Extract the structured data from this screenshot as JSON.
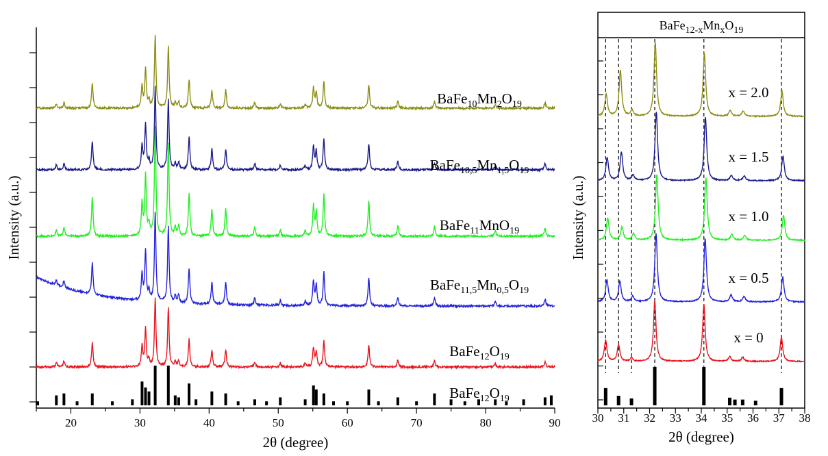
{
  "chart_data": [
    {
      "type": "line",
      "panel": "left",
      "xlabel": "2θ (degree)",
      "ylabel": "Intensity (a.u.)",
      "xlim": [
        15,
        90
      ],
      "xticks": [
        20,
        30,
        40,
        50,
        60,
        70,
        80,
        90
      ],
      "peaks_2theta": [
        17.9,
        19.0,
        23.1,
        30.3,
        30.8,
        31.3,
        32.2,
        34.1,
        35.1,
        35.6,
        37.1,
        40.4,
        42.4,
        46.6,
        50.3,
        53.9,
        55.1,
        55.5,
        56.6,
        63.1,
        67.3,
        72.6,
        81.4,
        88.6
      ],
      "peak_intensities": [
        0.06,
        0.08,
        0.35,
        0.3,
        0.55,
        0.1,
        1.0,
        0.85,
        0.08,
        0.09,
        0.4,
        0.25,
        0.25,
        0.08,
        0.06,
        0.05,
        0.28,
        0.22,
        0.38,
        0.32,
        0.1,
        0.09,
        0.05,
        0.08
      ],
      "series": [
        {
          "name": "BaFe12O19",
          "label": {
            "base": "BaFe",
            "s1": "12",
            "mid": "O",
            "s2": "19"
          },
          "color": "#e8141c"
        },
        {
          "name": "BaFe11,5Mn0,5O19",
          "label": {
            "base": "BaFe",
            "s1": "11,5",
            "mid": "Mn",
            "s2": "0,5",
            "mid2": "O",
            "s3": "19"
          },
          "color": "#2222dd"
        },
        {
          "name": "BaFe11MnO19",
          "label": {
            "base": "BaFe",
            "s1": "11",
            "mid": "MnO",
            "s2": "19"
          },
          "color": "#22ee22"
        },
        {
          "name": "BaFe10,5Mn1,5O19",
          "label": {
            "base": "BaFe",
            "s1": "10,5",
            "mid": "Mn",
            "s2": "1,5",
            "mid2": "O",
            "s3": "19"
          },
          "color": "#1a1a8c"
        },
        {
          "name": "BaFe10Mn2O19",
          "label": {
            "base": "BaFe",
            "s1": "10",
            "mid": "Mn",
            "s2": "2",
            "mid2": "O",
            "s3": "19"
          },
          "color": "#8c8c14"
        }
      ],
      "reference": {
        "name": "BaFe12O19",
        "label": {
          "base": "BaFe",
          "s1": "12",
          "mid": "O",
          "s2": "19"
        },
        "peaks_2theta": [
          15.2,
          17.9,
          19.0,
          20.9,
          23.1,
          26.0,
          28.9,
          30.3,
          30.8,
          31.3,
          32.2,
          34.1,
          35.1,
          35.6,
          37.1,
          38.1,
          40.4,
          42.4,
          44.2,
          46.6,
          48.3,
          50.3,
          53.9,
          55.1,
          55.5,
          56.6,
          58.0,
          60.0,
          63.1,
          64.5,
          67.3,
          70.0,
          72.6,
          75.0,
          77.0,
          79.0,
          81.4,
          83.0,
          85.5,
          88.6,
          89.5
        ],
        "heights": [
          0.1,
          0.25,
          0.3,
          0.1,
          0.3,
          0.1,
          0.15,
          0.6,
          0.45,
          0.35,
          1.0,
          1.0,
          0.25,
          0.2,
          0.55,
          0.15,
          0.35,
          0.3,
          0.1,
          0.15,
          0.1,
          0.2,
          0.15,
          0.5,
          0.4,
          0.3,
          0.1,
          0.1,
          0.4,
          0.1,
          0.2,
          0.1,
          0.3,
          0.15,
          0.1,
          0.15,
          0.15,
          0.1,
          0.15,
          0.2,
          0.25
        ]
      }
    },
    {
      "type": "line",
      "panel": "right",
      "title": {
        "base": "BaFe",
        "s1": "12-x",
        "mid": "Mn",
        "s2": "x",
        "mid2": "O",
        "s3": "19"
      },
      "xlabel": "2θ (degree)",
      "ylabel": "Intensity (a.u.)",
      "xlim": [
        30,
        38
      ],
      "xticks": [
        30,
        31,
        32,
        33,
        34,
        35,
        36,
        37,
        38
      ],
      "dashed_lines_2theta": [
        30.3,
        30.8,
        31.3,
        32.2,
        34.1,
        37.1
      ],
      "series": [
        {
          "x_value": "0",
          "label": "x = 0",
          "color": "#e8141c"
        },
        {
          "x_value": "0.5",
          "label": "x = 0.5",
          "color": "#2222dd"
        },
        {
          "x_value": "1.0",
          "label": "x = 1.0",
          "color": "#22ee22"
        },
        {
          "x_value": "1.5",
          "label": "x = 1.5",
          "color": "#1a1a8c"
        },
        {
          "x_value": "2.0",
          "label": "x = 2.0",
          "color": "#8c8c14"
        }
      ],
      "reference_peaks_2theta": [
        30.3,
        30.8,
        31.3,
        32.2,
        34.1,
        35.1,
        35.3,
        35.6,
        36.1,
        37.1
      ],
      "reference_heights": [
        0.45,
        0.25,
        0.18,
        1.0,
        1.0,
        0.2,
        0.15,
        0.15,
        0.12,
        0.45
      ]
    }
  ]
}
